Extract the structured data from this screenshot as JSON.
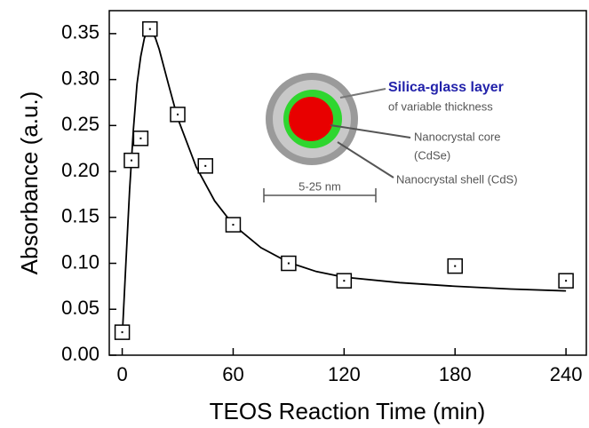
{
  "chart_data": {
    "type": "scatter",
    "x_label": "TEOS Reaction Time (min)",
    "y_label": "Absorbance (a.u.)",
    "x": [
      0,
      5,
      10,
      15,
      30,
      45,
      60,
      90,
      120,
      180,
      240
    ],
    "values": [
      0.025,
      0.212,
      0.236,
      0.355,
      0.262,
      0.206,
      0.142,
      0.1,
      0.081,
      0.097,
      0.081
    ],
    "color": "#000000",
    "fit": {
      "x": [
        0,
        2,
        4,
        6,
        8,
        10,
        12,
        14,
        16,
        18,
        20,
        25,
        30,
        40,
        50,
        60,
        75,
        90,
        105,
        120,
        150,
        180,
        210,
        240
      ],
      "values": [
        0.02,
        0.1,
        0.18,
        0.245,
        0.295,
        0.325,
        0.345,
        0.354,
        0.353,
        0.345,
        0.333,
        0.295,
        0.258,
        0.205,
        0.168,
        0.142,
        0.117,
        0.101,
        0.091,
        0.085,
        0.079,
        0.075,
        0.072,
        0.07
      ]
    },
    "xlim": [
      -7,
      251
    ],
    "ylim": [
      0,
      0.375
    ],
    "xticks": [
      0,
      60,
      120,
      180,
      240
    ],
    "yticks": [
      {
        "value": 0,
        "label": "0.00"
      },
      0.05,
      {
        "value": 0.1,
        "label": "0.10"
      },
      0.15,
      {
        "value": 0.2,
        "label": "0.20"
      },
      0.25,
      {
        "value": 0.3,
        "label": "0.30"
      },
      0.35
    ],
    "annotations": [
      "Silica-glass layer",
      "of variable thickness",
      "Nanocrystal core",
      "(CdSe)",
      "Nanocrystal shell (CdS)",
      "5-25 nm"
    ]
  }
}
